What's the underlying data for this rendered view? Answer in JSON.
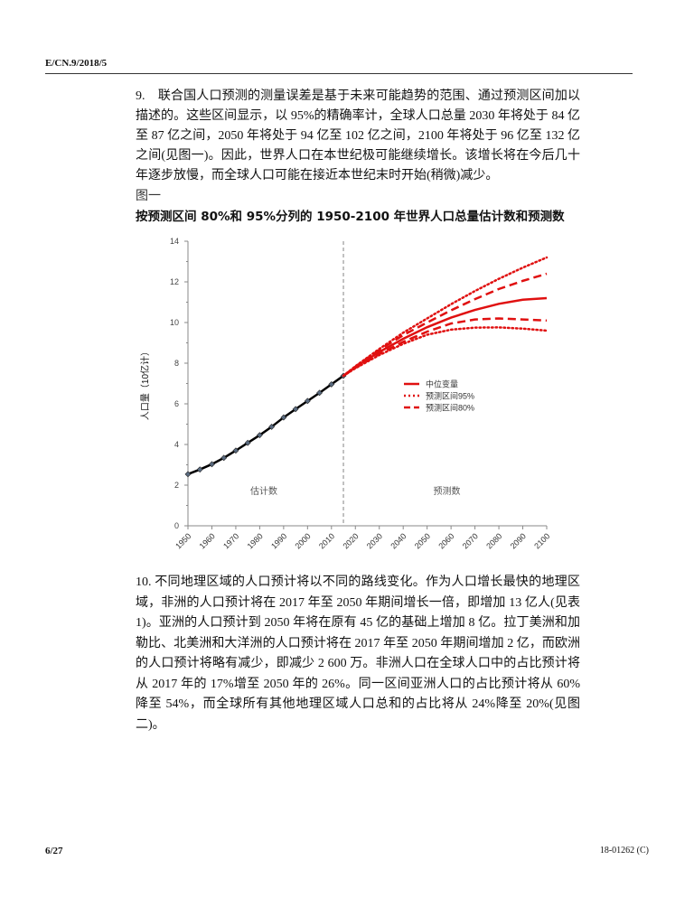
{
  "header": {
    "doc_symbol": "E/CN.9/2018/5"
  },
  "paragraph_9": "9.　联合国人口预测的测量误差是基于未来可能趋势的范围、通过预测区间加以描述的。这些区间显示，以 95%的精确率计，全球人口总量 2030 年将处于 84 亿至 87 亿之间，2050 年将处于 94 亿至 102 亿之间，2100 年将处于 96 亿至 132 亿之间(见图一)。因此，世界人口在本世纪极可能继续增长。该增长将在今后几十年逐步放慢，而全球人口可能在接近本世纪末时开始(稍微)减少。",
  "figure": {
    "label": "图一",
    "title": "按预测区间 80%和 95%分列的 1950-2100 年世界人口总量估计数和预测数"
  },
  "chart_data": {
    "type": "line",
    "title": "按预测区间 80%和 95%分列的 1950-2100 年世界人口总量估计数和预测数",
    "xlabel": "",
    "ylabel": "人口量（10亿计）",
    "xlim": [
      1950,
      2100
    ],
    "ylim": [
      0,
      14
    ],
    "x_ticks": [
      "1950",
      "1960",
      "1970",
      "1980",
      "1990",
      "2000",
      "2010",
      "2020",
      "2030",
      "2040",
      "2050",
      "2060",
      "2070",
      "2080",
      "2090",
      "2100"
    ],
    "y_ticks": [
      "0",
      "2",
      "4",
      "6",
      "8",
      "10",
      "12",
      "14"
    ],
    "divider_year": 2015,
    "region_labels": {
      "estimates": "估计数",
      "projections": "预测数"
    },
    "legend_position": "center-right",
    "colors": {
      "estimate": "#000000",
      "projection": "#e01010",
      "divider": "#999999"
    },
    "estimates": {
      "name": "估计数",
      "x": [
        1950,
        1955,
        1960,
        1965,
        1970,
        1975,
        1980,
        1985,
        1990,
        1995,
        2000,
        2005,
        2010,
        2015
      ],
      "y": [
        2.54,
        2.77,
        3.03,
        3.34,
        3.7,
        4.08,
        4.46,
        4.87,
        5.33,
        5.74,
        6.14,
        6.54,
        6.96,
        7.38
      ]
    },
    "series": [
      {
        "name": "中位变量",
        "style": "solid",
        "x": [
          2015,
          2020,
          2030,
          2040,
          2050,
          2060,
          2070,
          2080,
          2090,
          2100
        ],
        "y": [
          7.38,
          7.8,
          8.55,
          9.2,
          9.77,
          10.24,
          10.62,
          10.92,
          11.12,
          11.2
        ]
      },
      {
        "name": "预测区间95%",
        "style": "dotted",
        "bound": "upper",
        "x": [
          2015,
          2020,
          2030,
          2040,
          2050,
          2060,
          2070,
          2080,
          2090,
          2100
        ],
        "y": [
          7.38,
          7.85,
          8.7,
          9.5,
          10.2,
          10.9,
          11.55,
          12.15,
          12.7,
          13.2
        ]
      },
      {
        "name": "预测区间95%",
        "style": "dotted",
        "bound": "lower",
        "x": [
          2015,
          2020,
          2030,
          2040,
          2050,
          2060,
          2070,
          2080,
          2090,
          2100
        ],
        "y": [
          7.38,
          7.75,
          8.4,
          8.95,
          9.4,
          9.65,
          9.75,
          9.76,
          9.7,
          9.6
        ]
      },
      {
        "name": "预测区间80%",
        "style": "dashed",
        "bound": "upper",
        "x": [
          2015,
          2020,
          2030,
          2040,
          2050,
          2060,
          2070,
          2080,
          2090,
          2100
        ],
        "y": [
          7.38,
          7.83,
          8.65,
          9.38,
          10.0,
          10.6,
          11.15,
          11.65,
          12.05,
          12.4
        ]
      },
      {
        "name": "预测区间80%",
        "style": "dashed",
        "bound": "lower",
        "x": [
          2015,
          2020,
          2030,
          2040,
          2050,
          2060,
          2070,
          2080,
          2090,
          2100
        ],
        "y": [
          7.38,
          7.77,
          8.45,
          9.05,
          9.55,
          9.95,
          10.15,
          10.2,
          10.15,
          10.1
        ]
      }
    ],
    "legend": [
      "中位变量",
      "预测区间95%",
      "预测区间80%"
    ]
  },
  "paragraph_10": "10. 不同地理区域的人口预计将以不同的路线变化。作为人口增长最快的地理区域，非洲的人口预计将在 2017 年至 2050 年期间增长一倍，即增加 13 亿人(见表 1)。亚洲的人口预计到 2050 年将在原有 45 亿的基础上增加 8 亿。拉丁美洲和加勒比、北美洲和大洋洲的人口预计将在 2017 年至 2050 年期间增加 2 亿，而欧洲的人口预计将略有减少，即减少 2 600 万。非洲人口在全球人口中的占比预计将从 2017 年的 17%增至 2050 年的 26%。同一区间亚洲人口的占比预计将从 60%降至 54%，而全球所有其他地理区域人口总和的占比将从 24%降至 20%(见图二)。",
  "footer": {
    "page": "6/27",
    "doc_number": "18-01262 (C)"
  }
}
